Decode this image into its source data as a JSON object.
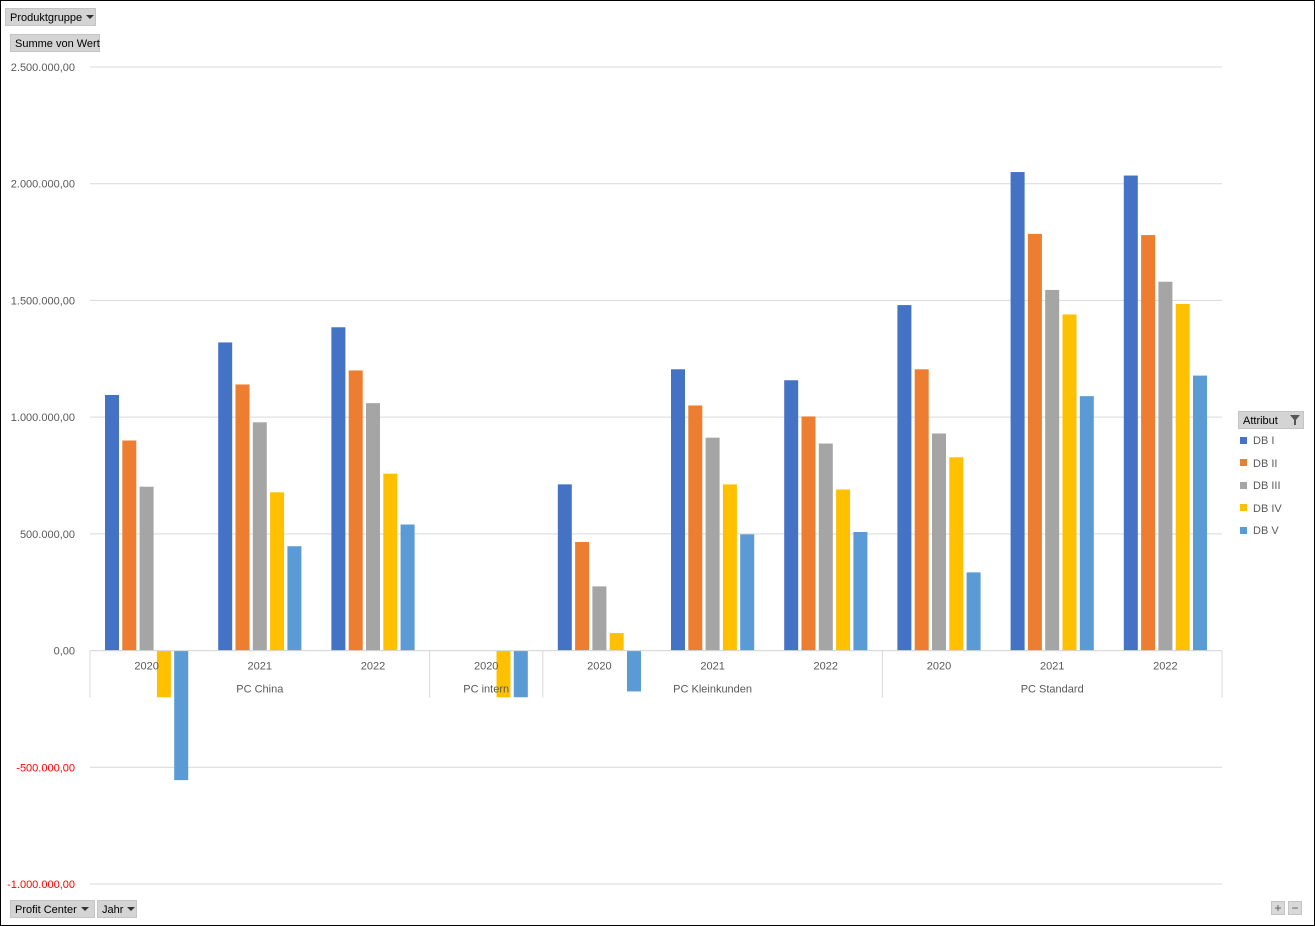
{
  "field_buttons": {
    "filter": "Produktgruppe",
    "values": "Summe  von Wert",
    "axis_1": "Profit  Center",
    "axis_2": "Jahr"
  },
  "legend": {
    "title": "Attribut"
  },
  "zoom": {
    "in": "+",
    "out": "−"
  },
  "chart_data": {
    "type": "bar",
    "ylim": [
      -1000000,
      2500000
    ],
    "ytick_step": 500000,
    "y_ticks": [
      "2.500.000,00",
      "2.000.000,00",
      "1.500.000,00",
      "1.000.000,00",
      "500.000,00",
      "0,00",
      "-500.000,00",
      "-1.000.000,00"
    ],
    "negative_tick_color": "#ff0000",
    "grid": true,
    "legend_position": "right",
    "groups": [
      {
        "name": "PC China",
        "years": [
          "2020",
          "2021",
          "2022"
        ]
      },
      {
        "name": "PC intern",
        "years": [
          "2020"
        ]
      },
      {
        "name": "PC Kleinkunden",
        "years": [
          "2020",
          "2021",
          "2022"
        ]
      },
      {
        "name": "PC Standard",
        "years": [
          "2020",
          "2021",
          "2022"
        ]
      }
    ],
    "series": [
      {
        "name": "DB I",
        "color": "#4472c4",
        "values": [
          1095000,
          1320000,
          1385000,
          0,
          712000,
          1205000,
          1158000,
          1480000,
          2050000,
          2035000
        ]
      },
      {
        "name": "DB II",
        "color": "#ed7d31",
        "values": [
          900000,
          1140000,
          1200000,
          0,
          465000,
          1050000,
          1003000,
          1205000,
          1785000,
          1780000
        ]
      },
      {
        "name": "DB III",
        "color": "#a5a5a5",
        "values": [
          702000,
          978000,
          1060000,
          0,
          275000,
          912000,
          887000,
          930000,
          1545000,
          1580000
        ]
      },
      {
        "name": "DB IV",
        "color": "#ffc000",
        "values": [
          -200000,
          678000,
          758000,
          -200000,
          75000,
          712000,
          690000,
          828000,
          1440000,
          1485000
        ]
      },
      {
        "name": "DB V",
        "color": "#5b9bd5",
        "values": [
          -555000,
          447000,
          540000,
          -200000,
          -175000,
          498000,
          508000,
          335000,
          1090000,
          1178000
        ]
      }
    ]
  }
}
